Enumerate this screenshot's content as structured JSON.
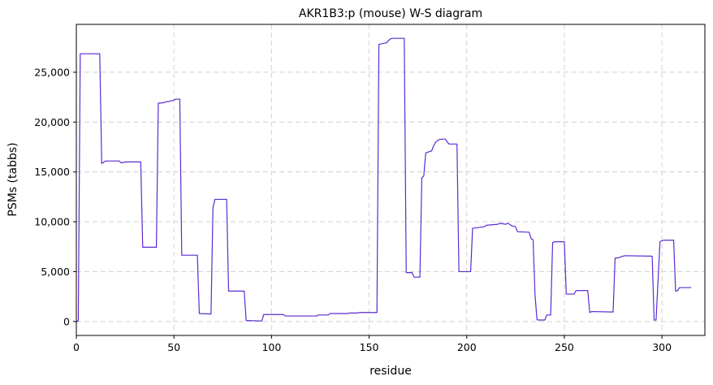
{
  "chart_data": {
    "type": "line",
    "title": "AKR1B3:p (mouse) W-S diagram",
    "xlabel": "residue",
    "ylabel": "PSMs (tabbs)",
    "xlim": [
      0,
      322
    ],
    "ylim": [
      -1400,
      29800
    ],
    "xticks": [
      0,
      50,
      100,
      150,
      200,
      250,
      300
    ],
    "xtick_labels": [
      "0",
      "50",
      "100",
      "150",
      "200",
      "250",
      "300"
    ],
    "yticks": [
      0,
      5000,
      10000,
      15000,
      20000,
      25000
    ],
    "ytick_labels": [
      "0",
      "5,000",
      "10,000",
      "15,000",
      "20,000",
      "25,000"
    ],
    "grid": true,
    "color": "#5b2bd1",
    "series": [
      {
        "x": [
          0,
          1,
          2,
          12,
          13,
          15,
          22,
          23,
          25,
          33,
          34,
          41,
          42,
          45,
          46,
          47,
          48,
          49,
          50,
          51,
          53,
          54,
          62,
          63,
          69,
          70,
          71,
          77,
          78,
          86,
          87,
          95,
          96,
          106,
          107,
          123,
          124,
          129,
          130,
          139,
          140,
          144,
          145,
          154,
          155,
          159,
          160,
          161,
          162,
          168,
          169,
          172,
          173,
          176,
          177,
          178,
          179,
          181,
          182,
          183,
          184,
          185,
          186,
          188,
          189,
          190,
          191,
          195,
          196,
          202,
          203,
          209,
          210,
          216,
          217,
          220,
          221,
          222,
          223,
          225,
          226,
          232,
          233,
          234,
          235,
          236,
          237,
          240,
          241,
          243,
          244,
          245,
          250,
          251,
          255,
          256,
          262,
          263,
          264,
          275,
          276,
          278,
          279,
          280,
          281,
          295,
          296,
          297,
          299,
          300,
          301,
          306,
          307,
          308,
          309,
          315
        ],
        "values": [
          -50,
          80,
          26850,
          26850,
          15850,
          16100,
          16100,
          15900,
          16000,
          16000,
          7450,
          7450,
          21900,
          21950,
          22050,
          22050,
          22100,
          22150,
          22200,
          22300,
          22300,
          6650,
          6650,
          800,
          750,
          11400,
          12250,
          12250,
          3050,
          3050,
          100,
          50,
          700,
          700,
          550,
          550,
          650,
          650,
          800,
          800,
          850,
          850,
          900,
          900,
          27800,
          27950,
          28200,
          28350,
          28400,
          28400,
          4900,
          4900,
          4450,
          4450,
          14400,
          14600,
          16900,
          17050,
          17100,
          17600,
          17950,
          18150,
          18250,
          18300,
          18300,
          18000,
          17800,
          17800,
          5000,
          5000,
          9350,
          9500,
          9650,
          9750,
          9850,
          9750,
          9850,
          9750,
          9600,
          9500,
          9000,
          8950,
          8300,
          8200,
          2600,
          180,
          150,
          150,
          650,
          650,
          7900,
          8000,
          8000,
          2750,
          2750,
          3100,
          3100,
          900,
          1000,
          950,
          6350,
          6400,
          6500,
          6550,
          6600,
          6550,
          150,
          150,
          8000,
          8100,
          8150,
          8150,
          3050,
          3100,
          3400,
          3400
        ]
      }
    ]
  }
}
